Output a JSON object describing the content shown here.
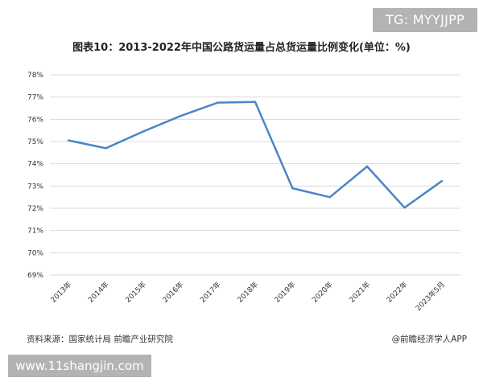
{
  "watermark_badge": "TG: MYYJJPP",
  "source": "资料来源：国家统计局 前瞻产业研究院",
  "brand": "@前瞻经济学人APP",
  "footer_url": "www.11shangjin.com",
  "colors": {
    "line": "#4a86c5",
    "grid": "#d9d9d9",
    "badge_bg": "#b3b3b3"
  },
  "chart_data": {
    "type": "line",
    "title": "图表10：2013-2022年中国公路货运量占总货运量比例变化(单位：%)",
    "xlabel": "",
    "ylabel": "",
    "categories": [
      "2013年",
      "2014年",
      "2015年",
      "2016年",
      "2017年",
      "2018年",
      "2019年",
      "2020年",
      "2021年",
      "2022年",
      "2023年5月"
    ],
    "series": [
      {
        "values": [
          75.05,
          74.7,
          75.45,
          76.15,
          76.75,
          76.78,
          72.9,
          72.5,
          73.88,
          72.03,
          73.22
        ]
      }
    ],
    "ylim": [
      69,
      78
    ],
    "yticks": [
      "69%",
      "70%",
      "71%",
      "72%",
      "73%",
      "74%",
      "75%",
      "76%",
      "77%",
      "78%"
    ],
    "grid": true,
    "legend": "none"
  }
}
